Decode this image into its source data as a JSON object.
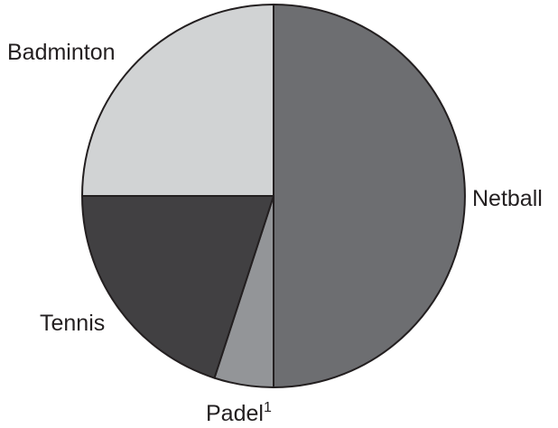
{
  "chart_data": {
    "type": "pie",
    "title": "",
    "start_angle_deg": 0,
    "direction": "clockwise",
    "slices": [
      {
        "label": "Netball",
        "value": 50,
        "color": "#6d6e71",
        "label_side": "right"
      },
      {
        "label": "Padel",
        "label_superscript": "1",
        "value": 5,
        "color": "#939598",
        "label_side": "bottom"
      },
      {
        "label": "Tennis",
        "value": 20,
        "color": "#414042",
        "label_side": "left"
      },
      {
        "label": "Badminton",
        "value": 25,
        "color": "#d1d3d4",
        "label_side": "left"
      }
    ],
    "outline_color": "#231f20"
  }
}
